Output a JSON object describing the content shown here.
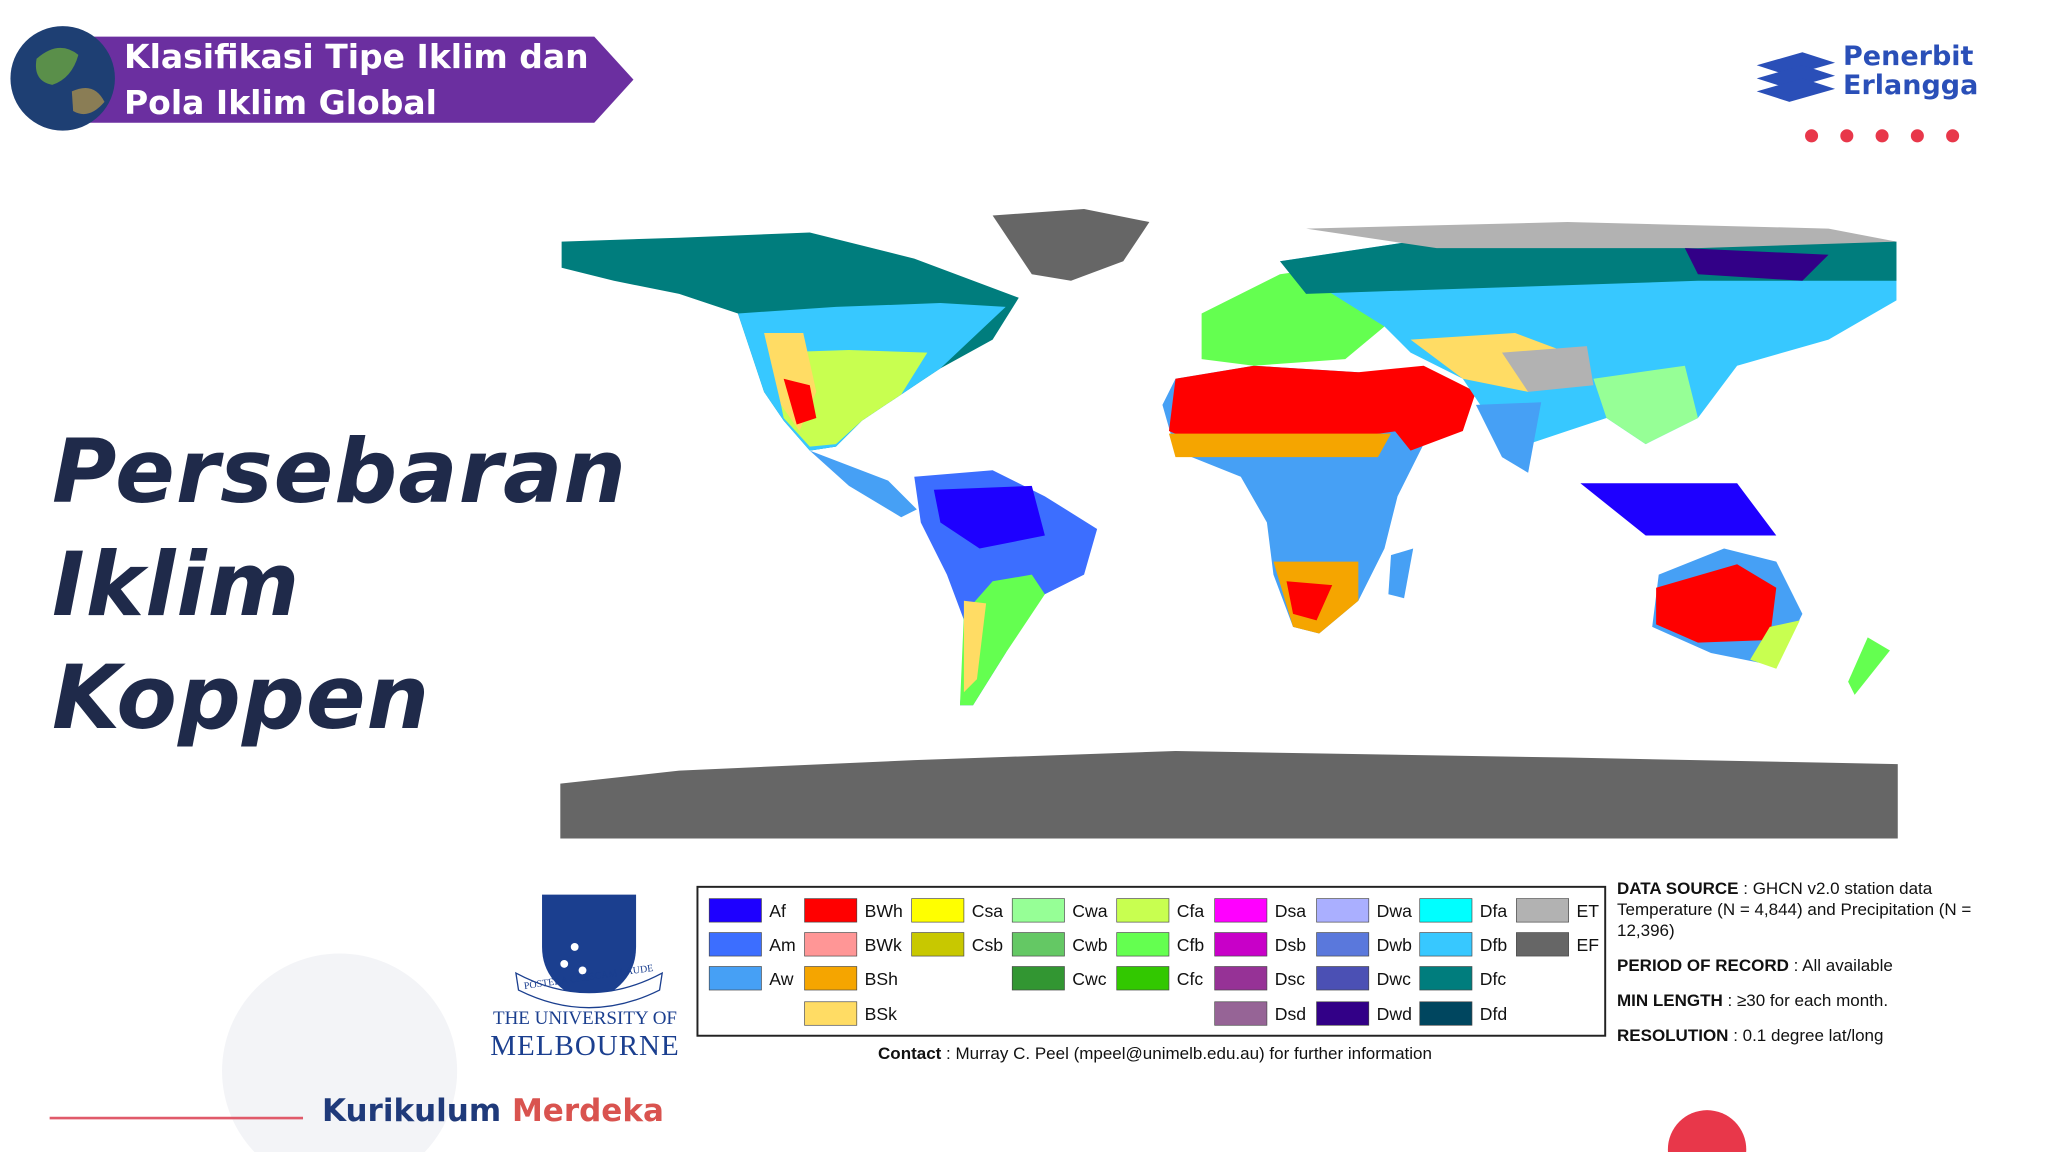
{
  "header": {
    "title": "Klasifikasi Tipe Iklim dan Pola Iklim Global"
  },
  "publisher": {
    "line1": "Penerbit",
    "line2": "Erlangga"
  },
  "slide_title": [
    "Persebaran",
    "Iklim",
    "Koppen"
  ],
  "legend": {
    "columns": [
      [
        {
          "code": "Af",
          "color": "#1e00ff"
        },
        {
          "code": "Am",
          "color": "#3c6eff"
        },
        {
          "code": "Aw",
          "color": "#46a0f5"
        }
      ],
      [
        {
          "code": "BWh",
          "color": "#ff0000"
        },
        {
          "code": "BWk",
          "color": "#ff9696"
        },
        {
          "code": "BSh",
          "color": "#f5a500"
        },
        {
          "code": "BSk",
          "color": "#ffdc64"
        }
      ],
      [
        {
          "code": "Csa",
          "color": "#ffff00"
        },
        {
          "code": "Csb",
          "color": "#c8c800"
        }
      ],
      [
        {
          "code": "Cwa",
          "color": "#96ff96"
        },
        {
          "code": "Cwb",
          "color": "#64c864"
        },
        {
          "code": "Cwc",
          "color": "#329632"
        }
      ],
      [
        {
          "code": "Cfa",
          "color": "#c8ff50"
        },
        {
          "code": "Cfb",
          "color": "#64ff50"
        },
        {
          "code": "Cfc",
          "color": "#32c800"
        }
      ],
      [
        {
          "code": "Dsa",
          "color": "#ff00ff"
        },
        {
          "code": "Dsb",
          "color": "#c800c8"
        },
        {
          "code": "Dsc",
          "color": "#963296"
        },
        {
          "code": "Dsd",
          "color": "#966496"
        }
      ],
      [
        {
          "code": "Dwa",
          "color": "#aaafff"
        },
        {
          "code": "Dwb",
          "color": "#5a78dc"
        },
        {
          "code": "Dwc",
          "color": "#4b50b4"
        },
        {
          "code": "Dwd",
          "color": "#320087"
        }
      ],
      [
        {
          "code": "Dfa",
          "color": "#00ffff"
        },
        {
          "code": "Dfb",
          "color": "#37c8ff"
        },
        {
          "code": "Dfc",
          "color": "#007d7d"
        },
        {
          "code": "Dfd",
          "color": "#00465f"
        }
      ],
      [
        {
          "code": "ET",
          "color": "#b2b2b2"
        },
        {
          "code": "EF",
          "color": "#666666"
        }
      ]
    ]
  },
  "contact": {
    "label": "Contact",
    "text": ": Murray C. Peel (mpeel@unimelb.edu.au) for further information"
  },
  "notes": [
    {
      "label": "DATA SOURCE",
      "text": ": GHCN v2.0 station data Temperature (N = 4,844) and Precipitation (N = 12,396)"
    },
    {
      "label": "PERIOD OF RECORD",
      "text": ": All available"
    },
    {
      "label": "MIN LENGTH",
      "text": ": ≥30 for each month."
    },
    {
      "label": "RESOLUTION",
      "text": ": 0.1 degree lat/long"
    }
  ],
  "university": {
    "motto": "POSTERA CRESCAM LAUDE",
    "line1": "THE UNIVERSITY OF",
    "line2": "MELBOURNE"
  },
  "footer": {
    "brand_1": "Kurikulum",
    "brand_2": "Merdeka"
  }
}
